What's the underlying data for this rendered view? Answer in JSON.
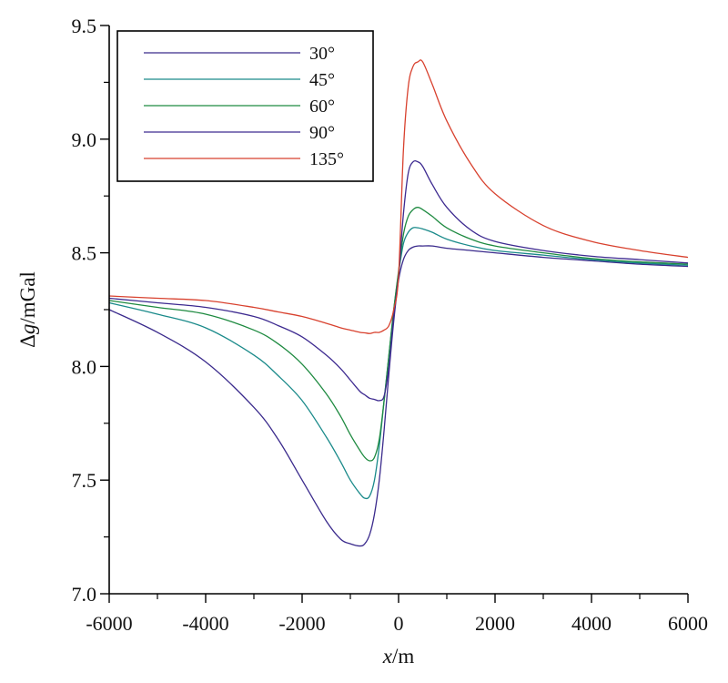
{
  "chart_data": {
    "type": "line",
    "xlabel_italic": "x",
    "xlabel_unit": "/m",
    "ylabel_prefix": "Δ",
    "ylabel_italic": "g",
    "ylabel_unit": "/mGal",
    "xlim": [
      -6000,
      6000
    ],
    "ylim": [
      7.0,
      9.5
    ],
    "x_ticks": [
      -6000,
      -4000,
      -2000,
      0,
      2000,
      4000,
      6000
    ],
    "x_tick_labels": [
      "-6000",
      "-4000",
      "-2000",
      "0",
      "2000",
      "4000",
      "6000"
    ],
    "y_ticks": [
      7.0,
      7.5,
      8.0,
      8.5,
      9.0,
      9.5
    ],
    "y_tick_labels": [
      "7.0",
      "7.5",
      "8.0",
      "8.5",
      "9.0",
      "9.5"
    ],
    "grid": false,
    "legend_position": "top-left",
    "x": [
      -6000,
      -5000,
      -4000,
      -3000,
      -2500,
      -2000,
      -1500,
      -1200,
      -1000,
      -800,
      -700,
      -600,
      -500,
      -400,
      -300,
      -200,
      -100,
      0,
      100,
      200,
      300,
      400,
      500,
      700,
      1000,
      1500,
      2000,
      3000,
      4000,
      5000,
      6000
    ],
    "series": [
      {
        "name": "30°",
        "color": "#3a2a8c",
        "values": [
          8.25,
          8.15,
          8.02,
          7.82,
          7.68,
          7.5,
          7.32,
          7.24,
          7.22,
          7.21,
          7.22,
          7.26,
          7.35,
          7.5,
          7.72,
          7.97,
          8.2,
          8.38,
          8.47,
          8.51,
          8.525,
          8.53,
          8.53,
          8.53,
          8.52,
          8.51,
          8.5,
          8.48,
          8.465,
          8.45,
          8.44
        ]
      },
      {
        "name": "45°",
        "color": "#1a8a8a",
        "values": [
          8.28,
          8.23,
          8.17,
          8.05,
          7.96,
          7.85,
          7.69,
          7.58,
          7.5,
          7.44,
          7.42,
          7.43,
          7.5,
          7.65,
          7.85,
          8.05,
          8.25,
          8.41,
          8.54,
          8.59,
          8.61,
          8.61,
          8.605,
          8.59,
          8.56,
          8.53,
          8.51,
          8.49,
          8.47,
          8.455,
          8.445
        ]
      },
      {
        "name": "60°",
        "color": "#1e8a40",
        "values": [
          8.29,
          8.26,
          8.23,
          8.16,
          8.1,
          8.01,
          7.88,
          7.78,
          7.7,
          7.63,
          7.6,
          7.585,
          7.6,
          7.68,
          7.85,
          8.05,
          8.25,
          8.42,
          8.58,
          8.66,
          8.69,
          8.7,
          8.69,
          8.66,
          8.61,
          8.56,
          8.53,
          8.5,
          8.475,
          8.46,
          8.45
        ]
      },
      {
        "name": "90°",
        "color": "#3d2a90",
        "values": [
          8.3,
          8.28,
          8.26,
          8.22,
          8.18,
          8.13,
          8.05,
          7.99,
          7.94,
          7.89,
          7.875,
          7.86,
          7.855,
          7.85,
          7.87,
          8.0,
          8.22,
          8.4,
          8.67,
          8.85,
          8.9,
          8.9,
          8.88,
          8.8,
          8.7,
          8.6,
          8.55,
          8.51,
          8.485,
          8.47,
          8.455
        ]
      },
      {
        "name": "135°",
        "color": "#d8412e",
        "values": [
          8.31,
          8.3,
          8.29,
          8.26,
          8.24,
          8.22,
          8.19,
          8.17,
          8.16,
          8.15,
          8.148,
          8.145,
          8.15,
          8.15,
          8.16,
          8.18,
          8.25,
          8.4,
          8.95,
          9.23,
          9.32,
          9.34,
          9.34,
          9.24,
          9.08,
          8.89,
          8.76,
          8.62,
          8.55,
          8.51,
          8.48
        ]
      }
    ]
  }
}
